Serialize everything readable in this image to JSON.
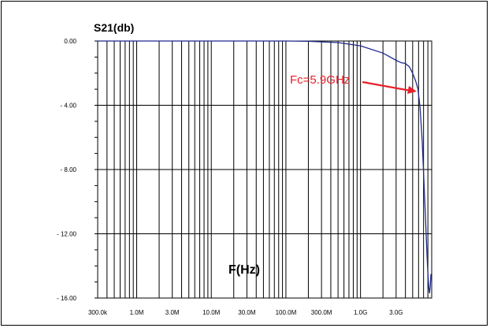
{
  "chart_data": {
    "type": "line",
    "ylabel": "S21(db)",
    "xlabel": "F(Hz)",
    "x_scale": "log",
    "xlim": [
      300000,
      9000000000
    ],
    "ylim": [
      -16,
      0
    ],
    "grid": true,
    "yticks": [
      {
        "value": 0,
        "label": "0.00"
      },
      {
        "value": -4,
        "label": "- 4.00"
      },
      {
        "value": -8,
        "label": "- 8.00"
      },
      {
        "value": -12,
        "label": "- 12.00"
      },
      {
        "value": -16,
        "label": "- 16.00"
      }
    ],
    "xticks": [
      {
        "value": 300000,
        "label": "300.0k"
      },
      {
        "value": 1000000,
        "label": "1.0M"
      },
      {
        "value": 3000000,
        "label": "3.0M"
      },
      {
        "value": 10000000,
        "label": "10.0M"
      },
      {
        "value": 30000000,
        "label": "30.0M"
      },
      {
        "value": 100000000,
        "label": "100.0M"
      },
      {
        "value": 300000000,
        "label": "300.0M"
      },
      {
        "value": 1000000000,
        "label": "1.0G"
      },
      {
        "value": 3000000000,
        "label": "3.0G"
      }
    ],
    "series": [
      {
        "color": "#1f2a8c",
        "x": [
          300000,
          1000000,
          10000000,
          100000000,
          200000000,
          500000000,
          1000000000,
          2000000000,
          3000000000,
          3500000000,
          4000000000,
          4500000000,
          5000000000,
          5500000000,
          5900000000,
          6300000000,
          6700000000,
          7100000000,
          7500000000,
          7800000000,
          8000000000,
          8200000000,
          8400000000,
          8600000000,
          8800000000
        ],
        "y": [
          0,
          0,
          0,
          0,
          -0.02,
          -0.1,
          -0.3,
          -0.75,
          -1.2,
          -1.35,
          -1.4,
          -1.6,
          -2.0,
          -2.5,
          -3.0,
          -4.2,
          -6.2,
          -8.8,
          -11.5,
          -13.4,
          -14.5,
          -15.3,
          -15.7,
          -15.3,
          -14.5
        ]
      }
    ],
    "annotation": {
      "text": "Fc=5.9GHz",
      "x": 5900000000,
      "y": -3.0,
      "color": "#e8202a"
    }
  }
}
